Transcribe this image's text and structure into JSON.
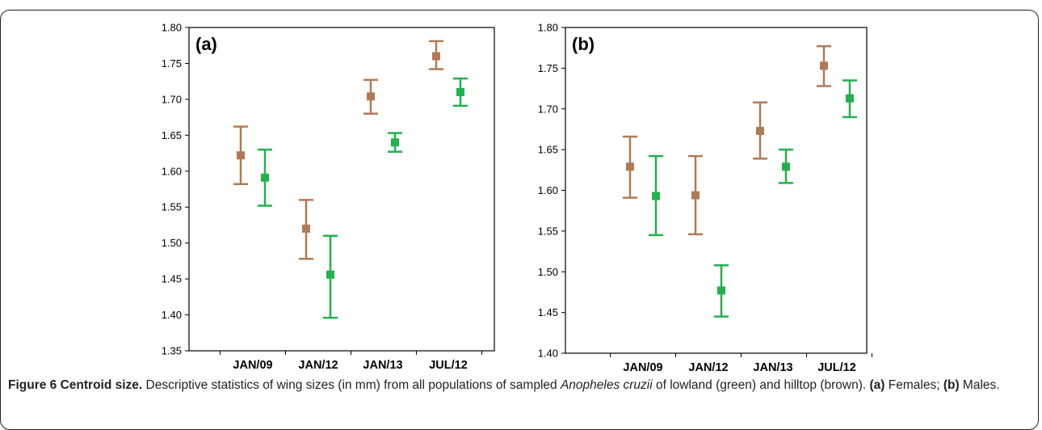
{
  "chart_data": [
    {
      "type": "scatter",
      "panel_label": "(a)",
      "categories": [
        "JAN/09",
        "JAN/12",
        "JAN/13",
        "JUL/12"
      ],
      "ylim": [
        1.35,
        1.8
      ],
      "yticks": [
        "1.35",
        "1.40",
        "1.45",
        "1.50",
        "1.55",
        "1.60",
        "1.65",
        "1.70",
        "1.75",
        "1.80"
      ],
      "series": [
        {
          "color": "#b07a56",
          "values": [
            1.622,
            1.52,
            1.704,
            1.76
          ],
          "lower": [
            1.582,
            1.478,
            1.68,
            1.742
          ],
          "upper": [
            1.662,
            1.56,
            1.727,
            1.781
          ]
        },
        {
          "color": "#22b14c",
          "values": [
            1.591,
            1.456,
            1.64,
            1.71
          ],
          "lower": [
            1.552,
            1.396,
            1.627,
            1.691
          ],
          "upper": [
            1.63,
            1.51,
            1.653,
            1.729
          ]
        }
      ]
    },
    {
      "type": "scatter",
      "panel_label": "(b)",
      "categories": [
        "JAN/09",
        "JAN/12",
        "JAN/13",
        "JUL/12"
      ],
      "ylim": [
        1.4,
        1.8
      ],
      "yticks": [
        "1.40",
        "1.45",
        "1.50",
        "1.55",
        "1.60",
        "1.65",
        "1.70",
        "1.75",
        "1.80"
      ],
      "series": [
        {
          "color": "#b07a56",
          "values": [
            1.629,
            1.594,
            1.673,
            1.753
          ],
          "lower": [
            1.591,
            1.546,
            1.639,
            1.728
          ],
          "upper": [
            1.666,
            1.642,
            1.708,
            1.777
          ]
        },
        {
          "color": "#22b14c",
          "values": [
            1.593,
            1.477,
            1.629,
            1.713
          ],
          "lower": [
            1.545,
            1.445,
            1.609,
            1.69
          ],
          "upper": [
            1.642,
            1.508,
            1.65,
            1.735
          ]
        }
      ]
    }
  ],
  "caption": {
    "figure_label": "Figure 6 Centroid size.",
    "text_1": " Descriptive statistics of wing sizes (in mm) from all populations of sampled ",
    "species": "Anopheles cruzii",
    "text_2": " of lowland (green) and hilltop (brown). ",
    "label_a": "(a)",
    "text_3": " Females; ",
    "label_b": "(b)",
    "text_4": " Males."
  }
}
